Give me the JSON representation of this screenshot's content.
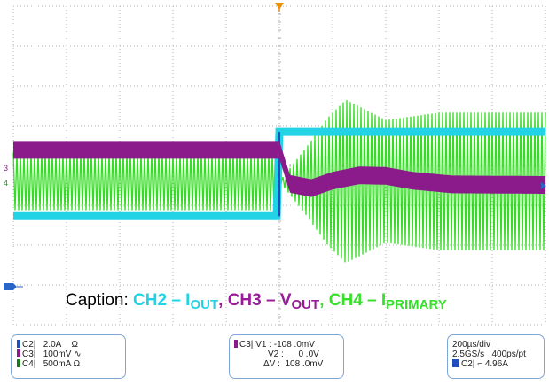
{
  "caption": {
    "prefix": "Caption: ",
    "ch2_text": "CH2 – I",
    "ch2_sub": "OUT",
    "sep1": ", ",
    "ch3_text": "CH3 – V",
    "ch3_sub": "OUT",
    "sep2": ", ",
    "ch4_text": "CH4 – I",
    "ch4_sub": "PRIMARY"
  },
  "markers": {
    "ch3_ref": "3",
    "ch4_ref": "4"
  },
  "channels_panel": {
    "rows": [
      {
        "label": "C2",
        "scale": "2.0A",
        "unit": "Ω",
        "color": "#1f4fbf"
      },
      {
        "label": "C3",
        "scale": "100mV",
        "unit": "∿",
        "color": "#8b1a8b"
      },
      {
        "label": "C4",
        "scale": "500mA",
        "unit": "Ω",
        "color": "#1a7a1a"
      }
    ]
  },
  "cursor_panel": {
    "channel": "C3",
    "v1_label": "V1 :",
    "v1_value": "-108 .0mV",
    "v2_label": "V2 :",
    "v2_value": "0 .0V",
    "dv_label": "ΔV :",
    "dv_value": "108 .0mV"
  },
  "timebase_panel": {
    "timebase": "200µs/div",
    "sample": "2.5GS/s",
    "resolution": "400ps/pt",
    "trigger_channel": "C2",
    "trigger_level": "4.96A"
  },
  "colors": {
    "ch2": "#22d3e6",
    "ch3": "#8b1a8b",
    "ch4": "#33dd22",
    "grid": "#b0b0b0",
    "trigger_marker": "#e8900c",
    "ground_marker": "#2a66c8"
  },
  "chart_data": {
    "type": "line",
    "title": "",
    "xlabel": "",
    "ylabel": "",
    "xlim": [
      -1000,
      1000
    ],
    "x_unit": "µs",
    "grid": true,
    "series": [
      {
        "name": "CH2 – IOUT",
        "color": "#22d3e6",
        "x": [
          -1000,
          -10,
          0,
          1000
        ],
        "y": [
          -3.1,
          -3.1,
          2.05,
          2.05
        ]
      },
      {
        "name": "CH3 – VOUT",
        "color": "#8b1a8b",
        "x": [
          -1000,
          0,
          40,
          120,
          200,
          300,
          400,
          500,
          650,
          1000
        ],
        "y": [
          72,
          72,
          -56,
          -72,
          -44,
          -24,
          -26,
          -44,
          -58,
          -60
        ]
      },
      {
        "name": "CH4 – IPRIMARY",
        "color": "#33dd22",
        "x": [
          -1000,
          0,
          100,
          180,
          250,
          400,
          600,
          1000
        ],
        "y": [
          0,
          0,
          1.8,
          3.4,
          4.4,
          3.3,
          3.7,
          3.7
        ]
      }
    ]
  }
}
